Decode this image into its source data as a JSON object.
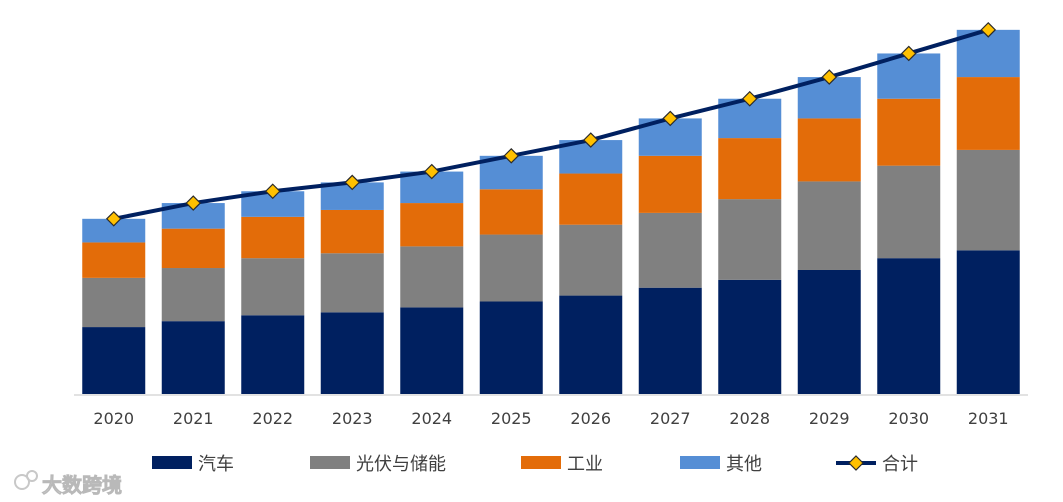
{
  "chart_data": {
    "type": "bar",
    "stacked": true,
    "categories": [
      "2020",
      "2021",
      "2022",
      "2023",
      "2024",
      "2025",
      "2026",
      "2027",
      "2028",
      "2029",
      "2030",
      "2031"
    ],
    "series": [
      {
        "name": "汽车",
        "color": "#002060",
        "values": [
          34,
          37,
          40,
          41.5,
          44,
          47,
          50,
          54,
          58,
          63,
          69,
          73
        ]
      },
      {
        "name": "光伏与储能",
        "color": "#808080",
        "values": [
          25,
          27,
          29,
          30,
          31,
          34,
          36,
          38,
          41,
          45,
          47,
          51
        ]
      },
      {
        "name": "工业",
        "color": "#E36C09",
        "values": [
          18,
          20,
          21,
          22,
          22,
          23,
          26,
          29,
          31,
          32,
          34,
          37
        ]
      },
      {
        "name": "其他",
        "color": "#558ED5",
        "values": [
          12,
          13,
          13,
          14,
          16,
          17,
          17,
          19,
          20,
          21,
          23,
          24
        ]
      }
    ],
    "total_line": {
      "name": "合计",
      "color": "#002060",
      "marker_color": "#FFC000",
      "values": [
        89,
        97,
        103,
        107.5,
        113,
        121,
        129,
        140,
        150,
        161,
        173,
        185
      ]
    },
    "ylim": [
      0,
      190
    ],
    "y_axis_visible": false,
    "grid": false,
    "legend_position": "bottom",
    "title": "",
    "xlabel": "",
    "ylabel": ""
  },
  "watermark": {
    "text": "大数跨境"
  }
}
